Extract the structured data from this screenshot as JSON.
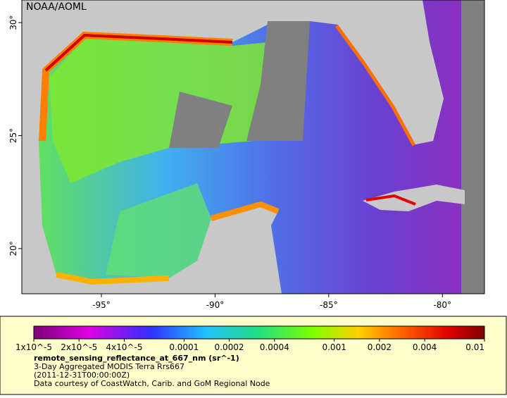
{
  "map": {
    "credit": "NOAA/AOML",
    "lonlim": [
      -98.5,
      -78.15
    ],
    "latlim": [
      18,
      31
    ],
    "lon_ticks": [
      {
        "value": -95,
        "label": "-95°"
      },
      {
        "value": -90,
        "label": "-90°"
      },
      {
        "value": -85,
        "label": "-85°"
      },
      {
        "value": -80,
        "label": "-80°"
      }
    ],
    "lat_ticks": [
      {
        "value": 20,
        "label": "20°"
      },
      {
        "value": 25,
        "label": "25°"
      },
      {
        "value": 30,
        "label": "30°"
      }
    ]
  },
  "colorbar": {
    "scale": "log",
    "range": [
      1e-05,
      0.01
    ],
    "ticks": [
      {
        "value": 1e-05,
        "label": "1x10^-5"
      },
      {
        "value": 2e-05,
        "label": "2x10^-5"
      },
      {
        "value": 4e-05,
        "label": "4x10^-5"
      },
      0.0001,
      0.0002,
      0.0004,
      0.001,
      0.002,
      0.004,
      0.01
    ]
  },
  "caption": {
    "variable": "remote_sensing_reflectance_at_667_nm (sr^-1)",
    "product": "3-Day Aggregated MODIS Terra Rrs667",
    "time": "(2011-12-31T00:00:00Z)",
    "source": "Data courtesy of CoastWatch, Carib. and GoM Regional Node"
  }
}
